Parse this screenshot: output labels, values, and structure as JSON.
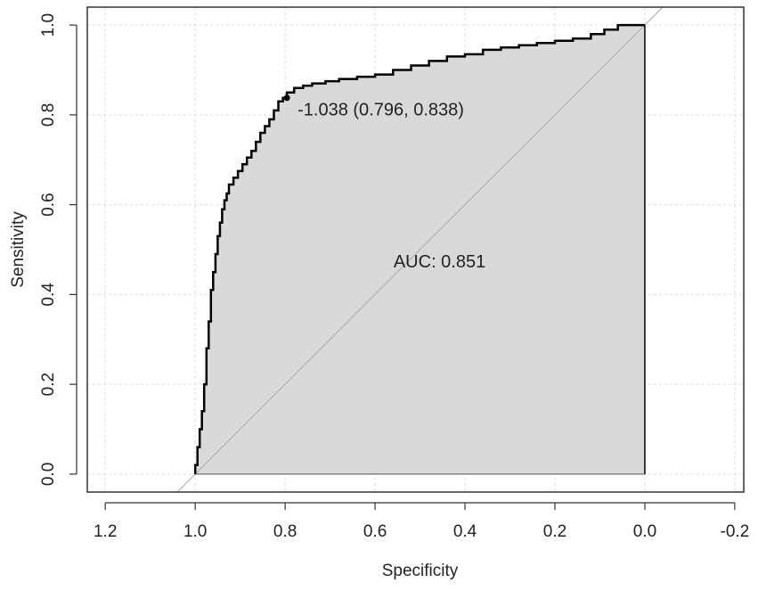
{
  "chart_data": {
    "type": "line",
    "title": "",
    "xlabel": "Specificity",
    "ylabel": "Sensitivity",
    "x_reversed": true,
    "xlim": [
      1.24,
      -0.22
    ],
    "ylim": [
      -0.04,
      1.04
    ],
    "x_ticks": [
      1.2,
      1.0,
      0.8,
      0.6,
      0.4,
      0.2,
      0.0,
      -0.2
    ],
    "x_tick_labels": [
      "1.2",
      "1.0",
      "0.8",
      "0.6",
      "0.4",
      "0.2",
      "0.0",
      "-0.2"
    ],
    "y_ticks": [
      0.0,
      0.2,
      0.4,
      0.6,
      0.8,
      1.0
    ],
    "y_tick_labels": [
      "0.0",
      "0.2",
      "0.4",
      "0.6",
      "0.8",
      "1.0"
    ],
    "grid": true,
    "series": [
      {
        "kind": "roc_curve",
        "color": "#000000",
        "fill": "#d9d9d9",
        "x": [
          1.0,
          0.995,
          0.99,
          0.985,
          0.98,
          0.975,
          0.97,
          0.965,
          0.96,
          0.955,
          0.95,
          0.945,
          0.94,
          0.935,
          0.93,
          0.925,
          0.915,
          0.905,
          0.895,
          0.885,
          0.875,
          0.865,
          0.855,
          0.845,
          0.835,
          0.825,
          0.815,
          0.805,
          0.796,
          0.78,
          0.76,
          0.74,
          0.71,
          0.68,
          0.64,
          0.6,
          0.56,
          0.52,
          0.48,
          0.44,
          0.4,
          0.36,
          0.32,
          0.28,
          0.24,
          0.2,
          0.16,
          0.12,
          0.09,
          0.06,
          0.03,
          0.0
        ],
        "y": [
          0.0,
          0.02,
          0.06,
          0.1,
          0.14,
          0.2,
          0.28,
          0.34,
          0.41,
          0.45,
          0.49,
          0.53,
          0.56,
          0.59,
          0.61,
          0.625,
          0.645,
          0.66,
          0.675,
          0.69,
          0.705,
          0.72,
          0.74,
          0.76,
          0.775,
          0.79,
          0.81,
          0.83,
          0.838,
          0.85,
          0.86,
          0.865,
          0.87,
          0.875,
          0.88,
          0.885,
          0.89,
          0.9,
          0.91,
          0.92,
          0.93,
          0.935,
          0.945,
          0.95,
          0.955,
          0.96,
          0.965,
          0.97,
          0.98,
          0.99,
          1.0,
          1.0
        ]
      }
    ],
    "diagonal": {
      "x": [
        1.04,
        -0.04
      ],
      "y": [
        -0.04,
        1.04
      ],
      "color": "#aaaaaa"
    },
    "annotations": [
      {
        "text": "-1.038 (0.796, 0.838)",
        "x": 0.796,
        "y": 0.838,
        "type": "threshold_point"
      },
      {
        "text": "AUC: 0.851",
        "x": 0.5,
        "y": 0.5,
        "type": "label"
      }
    ]
  }
}
